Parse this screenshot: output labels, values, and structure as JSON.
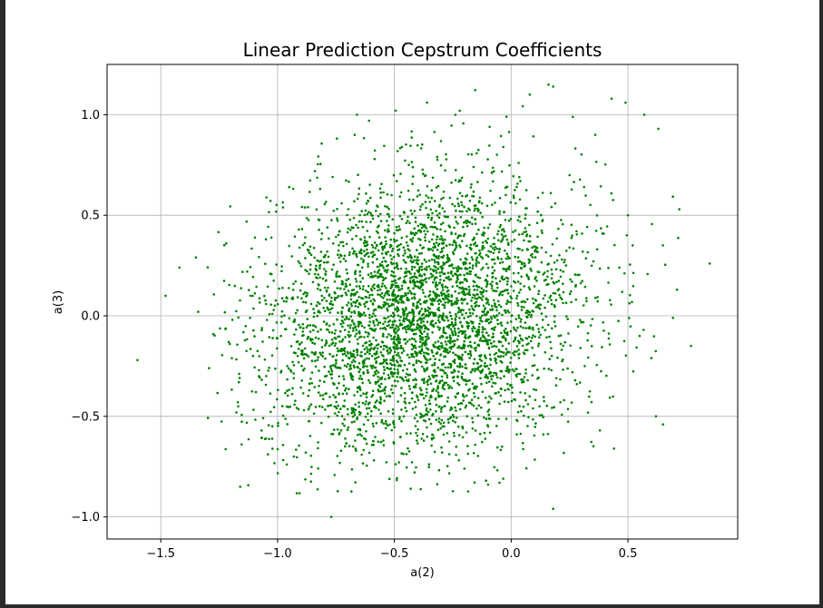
{
  "chart_data": {
    "type": "scatter",
    "title": "Linear Prediction Cepstrum Coefficients",
    "xlabel": "a(2)",
    "ylabel": "a(3)",
    "xlim": [
      -1.73,
      0.97
    ],
    "ylim": [
      -1.11,
      1.25
    ],
    "xticks": [
      -1.5,
      -1.0,
      -0.5,
      0.0,
      0.5
    ],
    "yticks": [
      -1.0,
      -0.5,
      0.0,
      0.5,
      1.0
    ],
    "xtick_labels": [
      "−1.5",
      "−1.0",
      "−0.5",
      "0.0",
      "0.5"
    ],
    "ytick_labels": [
      "−1.0",
      "−0.5",
      "0.0",
      "0.5",
      "1.0"
    ],
    "grid": true,
    "marker_color": "#008000",
    "marker_shape": "dot",
    "approx_point_count": 4000,
    "distribution": {
      "center": [
        -0.38,
        0.0
      ],
      "std": [
        0.34,
        0.33
      ]
    },
    "series": [
      {
        "points": [
          [
            -1.6,
            -0.22
          ],
          [
            -1.48,
            0.1
          ],
          [
            -1.42,
            0.24
          ],
          [
            -1.35,
            0.29
          ],
          [
            -1.34,
            0.02
          ],
          [
            -1.22,
            0.36
          ],
          [
            -1.17,
            -0.43
          ],
          [
            -1.16,
            -0.85
          ],
          [
            -0.77,
            -1.0
          ],
          [
            0.18,
            -0.96
          ],
          [
            0.85,
            0.26
          ],
          [
            0.77,
            -0.15
          ],
          [
            0.71,
            0.13
          ],
          [
            0.72,
            0.53
          ],
          [
            0.6,
            -0.21
          ],
          [
            0.62,
            -0.5
          ],
          [
            0.65,
            -0.54
          ],
          [
            0.44,
            -0.66
          ],
          [
            0.16,
            1.15
          ],
          [
            0.18,
            1.14
          ],
          [
            0.08,
            1.1
          ],
          [
            0.43,
            1.08
          ],
          [
            0.49,
            1.06
          ],
          [
            0.57,
            1.0
          ],
          [
            -0.66,
            1.0
          ],
          [
            -0.36,
            1.06
          ],
          [
            -0.22,
            1.02
          ],
          [
            -0.43,
            -0.86
          ],
          [
            -0.05,
            -0.83
          ],
          [
            -0.93,
            -0.7
          ],
          [
            0.38,
            -0.57
          ],
          [
            -1.05,
            -0.61
          ],
          [
            0.63,
            0.93
          ],
          [
            0.36,
            0.9
          ],
          [
            -0.02,
            0.99
          ],
          [
            -0.84,
            0.72
          ],
          [
            0.5,
            0.5
          ],
          [
            0.65,
            0.35
          ],
          [
            -1.13,
            0.22
          ],
          [
            -1.08,
            -0.3
          ],
          [
            -0.2,
            -0.76
          ],
          [
            0.52,
            0.35
          ],
          [
            0.55,
            -0.1
          ],
          [
            -0.67,
            0.9
          ],
          [
            0.28,
            0.42
          ]
        ]
      }
    ]
  }
}
